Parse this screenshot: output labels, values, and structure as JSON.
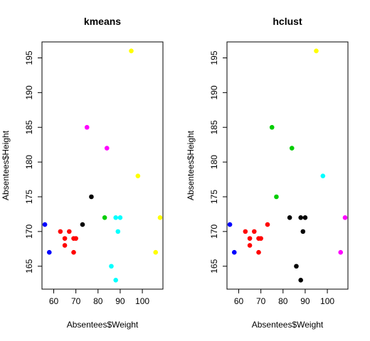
{
  "chart_data": [
    {
      "type": "scatter",
      "title": "kmeans",
      "xlabel": "Absentees$Weight",
      "ylabel": "Absentees$Height",
      "xlim": [
        54.7,
        109.3
      ],
      "ylim": [
        161.7,
        197.3
      ],
      "xticks": [
        60,
        70,
        80,
        90,
        100
      ],
      "yticks": [
        165,
        170,
        175,
        180,
        185,
        190,
        195
      ],
      "grid": false,
      "points": [
        {
          "x": 56,
          "y": 171,
          "color": "#0000ff"
        },
        {
          "x": 58,
          "y": 167,
          "color": "#0000ff"
        },
        {
          "x": 63,
          "y": 170,
          "color": "#ff0000"
        },
        {
          "x": 65,
          "y": 169,
          "color": "#ff0000"
        },
        {
          "x": 65,
          "y": 168,
          "color": "#ff0000"
        },
        {
          "x": 67,
          "y": 170,
          "color": "#ff0000"
        },
        {
          "x": 69,
          "y": 169,
          "color": "#ff0000"
        },
        {
          "x": 70,
          "y": 169,
          "color": "#ff0000"
        },
        {
          "x": 69,
          "y": 167,
          "color": "#ff0000"
        },
        {
          "x": 73,
          "y": 171,
          "color": "#000000"
        },
        {
          "x": 75,
          "y": 185,
          "color": "#ff00ff"
        },
        {
          "x": 77,
          "y": 175,
          "color": "#000000"
        },
        {
          "x": 83,
          "y": 172,
          "color": "#00cd00"
        },
        {
          "x": 84,
          "y": 182,
          "color": "#ff00ff"
        },
        {
          "x": 86,
          "y": 165,
          "color": "#00ffff"
        },
        {
          "x": 88,
          "y": 172,
          "color": "#00ffff"
        },
        {
          "x": 90,
          "y": 172,
          "color": "#00ffff"
        },
        {
          "x": 89,
          "y": 170,
          "color": "#00ffff"
        },
        {
          "x": 88,
          "y": 163,
          "color": "#00ffff"
        },
        {
          "x": 95,
          "y": 196,
          "color": "#ffff00"
        },
        {
          "x": 98,
          "y": 178,
          "color": "#ffff00"
        },
        {
          "x": 106,
          "y": 167,
          "color": "#ffff00"
        },
        {
          "x": 108,
          "y": 172,
          "color": "#ffff00"
        }
      ]
    },
    {
      "type": "scatter",
      "title": "hclust",
      "xlabel": "Absentees$Weight",
      "ylabel": "Absentees$Height",
      "xlim": [
        54.7,
        109.3
      ],
      "ylim": [
        161.7,
        197.3
      ],
      "xticks": [
        60,
        70,
        80,
        90,
        100
      ],
      "yticks": [
        165,
        170,
        175,
        180,
        185,
        190,
        195
      ],
      "grid": false,
      "points": [
        {
          "x": 56,
          "y": 171,
          "color": "#0000ff"
        },
        {
          "x": 58,
          "y": 167,
          "color": "#0000ff"
        },
        {
          "x": 63,
          "y": 170,
          "color": "#ff0000"
        },
        {
          "x": 65,
          "y": 169,
          "color": "#ff0000"
        },
        {
          "x": 65,
          "y": 168,
          "color": "#ff0000"
        },
        {
          "x": 67,
          "y": 170,
          "color": "#ff0000"
        },
        {
          "x": 69,
          "y": 169,
          "color": "#ff0000"
        },
        {
          "x": 70,
          "y": 169,
          "color": "#ff0000"
        },
        {
          "x": 69,
          "y": 167,
          "color": "#ff0000"
        },
        {
          "x": 73,
          "y": 171,
          "color": "#ff0000"
        },
        {
          "x": 75,
          "y": 185,
          "color": "#00cd00"
        },
        {
          "x": 77,
          "y": 175,
          "color": "#00cd00"
        },
        {
          "x": 84,
          "y": 182,
          "color": "#00cd00"
        },
        {
          "x": 83,
          "y": 172,
          "color": "#000000"
        },
        {
          "x": 88,
          "y": 172,
          "color": "#000000"
        },
        {
          "x": 90,
          "y": 172,
          "color": "#000000"
        },
        {
          "x": 89,
          "y": 170,
          "color": "#000000"
        },
        {
          "x": 86,
          "y": 165,
          "color": "#000000"
        },
        {
          "x": 88,
          "y": 163,
          "color": "#000000"
        },
        {
          "x": 95,
          "y": 196,
          "color": "#ffff00"
        },
        {
          "x": 98,
          "y": 178,
          "color": "#00ffff"
        },
        {
          "x": 106,
          "y": 167,
          "color": "#ff00ff"
        },
        {
          "x": 108,
          "y": 172,
          "color": "#ff00ff"
        }
      ]
    }
  ]
}
